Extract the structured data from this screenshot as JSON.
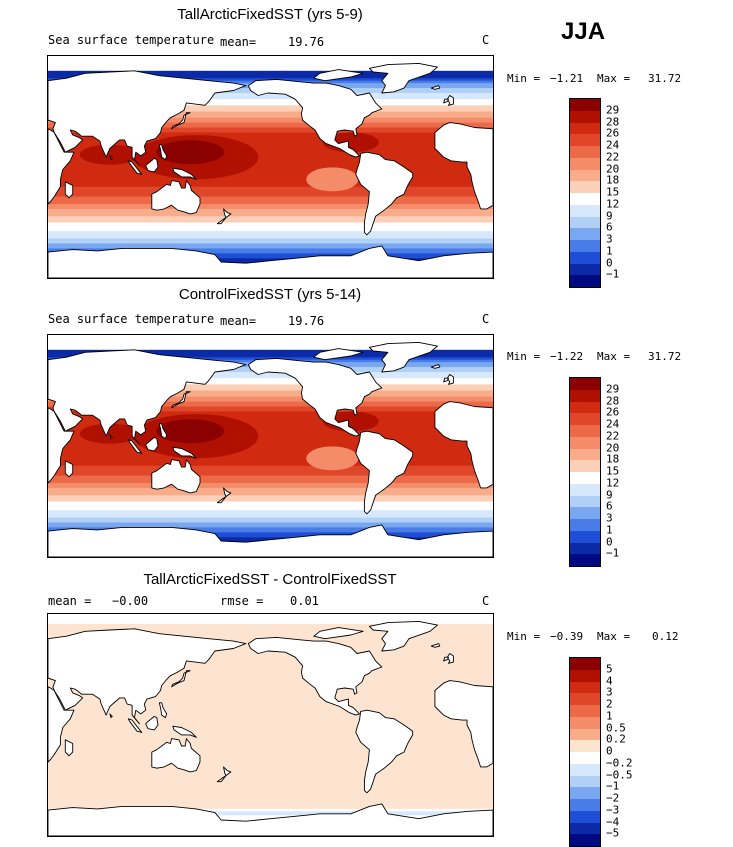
{
  "season": "JJA",
  "panels": [
    {
      "title": "TallArcticFixedSST (yrs 5-9)",
      "field_label": "Sea surface temperature",
      "stat_left": "mean=",
      "stat_left_value": "19.76",
      "stat_mid": "",
      "stat_mid_value": "",
      "units": "C",
      "min_label": "Min =",
      "min_value": "−1.21",
      "max_label": "Max =",
      "max_value": "31.72",
      "kind": "sst",
      "colorbar": {
        "labels": [
          "29",
          "28",
          "26",
          "24",
          "22",
          "20",
          "18",
          "15",
          "12",
          "9",
          "6",
          "3",
          "1",
          "0",
          "−1"
        ],
        "colors": [
          "#8b0000",
          "#b01000",
          "#d02a10",
          "#e0472a",
          "#ec6a48",
          "#f48c6a",
          "#f8ac8a",
          "#fcd0b8",
          "#ffffff",
          "#d8e8fc",
          "#b0d0f8",
          "#7aa8f0",
          "#4a7ce8",
          "#1e4ed6",
          "#0c2aa8",
          "#000a80"
        ]
      }
    },
    {
      "title": "ControlFixedSST (yrs 5-14)",
      "field_label": "Sea surface temperature",
      "stat_left": "mean=",
      "stat_left_value": "19.76",
      "stat_mid": "",
      "stat_mid_value": "",
      "units": "C",
      "min_label": "Min =",
      "min_value": "−1.22",
      "max_label": "Max =",
      "max_value": "31.72",
      "kind": "sst",
      "colorbar": {
        "labels": [
          "29",
          "28",
          "26",
          "24",
          "22",
          "20",
          "18",
          "15",
          "12",
          "9",
          "6",
          "3",
          "1",
          "0",
          "−1"
        ],
        "colors": [
          "#8b0000",
          "#b01000",
          "#d02a10",
          "#e0472a",
          "#ec6a48",
          "#f48c6a",
          "#f8ac8a",
          "#fcd0b8",
          "#ffffff",
          "#d8e8fc",
          "#b0d0f8",
          "#7aa8f0",
          "#4a7ce8",
          "#1e4ed6",
          "#0c2aa8",
          "#000a80"
        ]
      }
    },
    {
      "title": "TallArcticFixedSST - ControlFixedSST",
      "field_label": "",
      "stat_left": "mean =",
      "stat_left_value": "−0.00",
      "stat_mid": "rmse =",
      "stat_mid_value": "0.01",
      "units": "C",
      "min_label": "Min =",
      "min_value": "−0.39",
      "max_label": "Max =",
      "max_value": "0.12",
      "kind": "diff",
      "colorbar": {
        "labels": [
          "5",
          "4",
          "3",
          "2",
          "1",
          "0.5",
          "0.2",
          "0",
          "−0.2",
          "−0.5",
          "−1",
          "−2",
          "−3",
          "−4",
          "−5"
        ],
        "colors": [
          "#8b0000",
          "#b01000",
          "#d02a10",
          "#e0472a",
          "#ec6a48",
          "#f48c6a",
          "#f8ac8a",
          "#fde4d0",
          "#ffffff",
          "#d8e8fc",
          "#b0d0f8",
          "#7aa8f0",
          "#4a7ce8",
          "#1e4ed6",
          "#0c2aa8",
          "#000a80"
        ]
      }
    }
  ]
}
